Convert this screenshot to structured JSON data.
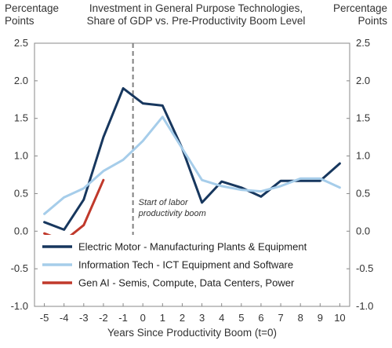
{
  "chart_data": {
    "type": "line",
    "title": [
      "Investment in General Purpose Technologies,",
      "Share of GDP vs. Pre-Productivity Boom Level"
    ],
    "ylabel_left": [
      "Percentage",
      "Points"
    ],
    "ylabel_right": [
      "Percentage",
      "Points"
    ],
    "xlabel": "Years Since Productivity Boom (t=0)",
    "x_ticks": [
      -5,
      -4,
      -3,
      -2,
      -1,
      0,
      1,
      2,
      3,
      4,
      5,
      6,
      7,
      8,
      9,
      10
    ],
    "y_ticks": [
      "2.5",
      "2.0",
      "1.5",
      "1.0",
      "0.5",
      "0.0",
      "-0.5",
      "-1.0"
    ],
    "y_tick_values": [
      2.5,
      2.0,
      1.5,
      1.0,
      0.5,
      0.0,
      -0.5,
      -1.0
    ],
    "ylim": [
      -1.0,
      2.5
    ],
    "xlim": [
      -5.5,
      10.5
    ],
    "grid": false,
    "legend_position": "lower-left",
    "series": [
      {
        "name": "Electric Motor -  Manufacturing Plants & Equipment",
        "color": "#17375e",
        "x": [
          -5,
          -4,
          -3,
          -2,
          -1,
          0,
          1,
          2,
          3,
          4,
          5,
          6,
          7,
          8,
          9,
          10
        ],
        "values": [
          0.12,
          0.02,
          0.42,
          1.25,
          1.9,
          1.7,
          1.67,
          1.1,
          0.38,
          0.66,
          0.58,
          0.46,
          0.67,
          0.67,
          0.67,
          0.9
        ]
      },
      {
        "name": "Information Tech - ICT Equipment and Software",
        "color": "#a6cdea",
        "x": [
          -5,
          -4,
          -3,
          -2,
          -1,
          0,
          1,
          2,
          3,
          4,
          5,
          6,
          7,
          8,
          9,
          10
        ],
        "values": [
          0.23,
          0.45,
          0.57,
          0.8,
          0.95,
          1.2,
          1.52,
          1.1,
          0.68,
          0.6,
          0.55,
          0.53,
          0.6,
          0.7,
          0.7,
          0.58
        ]
      },
      {
        "name": "Gen AI - Semis, Compute, Data Centers, Power",
        "color": "#c0392b",
        "x": [
          -5,
          -4,
          -3,
          -2
        ],
        "values": [
          -0.03,
          -0.13,
          0.08,
          0.68
        ]
      }
    ],
    "vertical_marker": {
      "x": -0.5,
      "color": "#808080",
      "style": "dashed"
    },
    "annotation": {
      "lines": [
        "Start of labor",
        "productivity boom"
      ]
    }
  }
}
